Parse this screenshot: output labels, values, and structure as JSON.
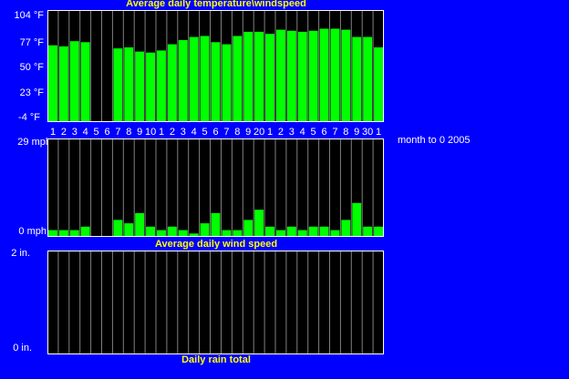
{
  "side_note": "month to 0 2005",
  "colors": {
    "background": "#0000FF",
    "plot_bg": "#000000",
    "bar": "#00FF00",
    "grid": "#808080",
    "title": "#FFFF00",
    "text": "#FFFFFF"
  },
  "chart_data": [
    {
      "type": "bar",
      "title": "Average daily temperature\\windspeed",
      "unit": "°F",
      "ylim": [
        -4,
        104
      ],
      "yticks": [
        "104 °F",
        "77 °F",
        "50 °F",
        "23 °F",
        "-4 °F"
      ],
      "categories": [
        "1",
        "2",
        "3",
        "4",
        "5",
        "6",
        "7",
        "8",
        "9",
        "10",
        "1",
        "2",
        "3",
        "4",
        "5",
        "6",
        "7",
        "8",
        "9",
        "20",
        "1",
        "2",
        "3",
        "4",
        "5",
        "6",
        "7",
        "8",
        "9",
        "30",
        "1"
      ],
      "values": [
        70,
        69,
        74,
        73,
        null,
        null,
        67,
        68,
        64,
        63,
        65,
        71,
        75,
        78,
        79,
        73,
        71,
        79,
        83,
        83,
        81,
        85,
        84,
        83,
        84,
        86,
        86,
        85,
        78,
        78,
        68
      ],
      "grid": true
    },
    {
      "type": "bar",
      "title": "Average daily wind speed",
      "unit": "mph",
      "ylim": [
        0,
        29
      ],
      "yticks": [
        "29 mph",
        "0 mph"
      ],
      "values": [
        2,
        2,
        2,
        3,
        0,
        0,
        5,
        4,
        7,
        3,
        2,
        3,
        2,
        1,
        4,
        7,
        2,
        2,
        5,
        8,
        3,
        2,
        3,
        2,
        3,
        3,
        2,
        5,
        10,
        3,
        3
      ],
      "grid": true
    },
    {
      "type": "bar",
      "title": "Daily rain total",
      "unit": "in.",
      "ylim": [
        0,
        2
      ],
      "yticks": [
        "2 in.",
        "0 in."
      ],
      "values": [
        0,
        0,
        0,
        0,
        0,
        0,
        0,
        0,
        0,
        0,
        0,
        0,
        0,
        0,
        0,
        0,
        0,
        0,
        0,
        0,
        0,
        0,
        0,
        0,
        0,
        0,
        0,
        0,
        0,
        0,
        0
      ],
      "grid": true
    }
  ]
}
